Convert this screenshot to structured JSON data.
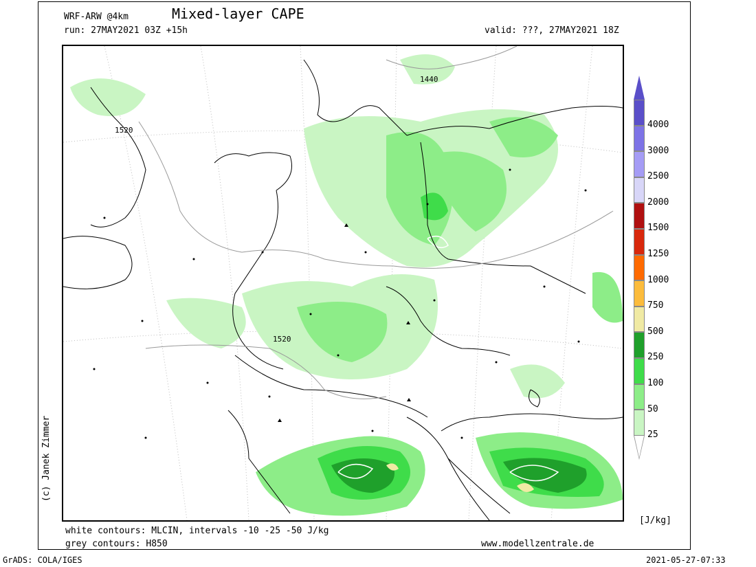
{
  "header": {
    "model": "WRF-ARW @4km",
    "title": "Mixed-layer CAPE",
    "run": "run: 27MAY2021 03Z +15h",
    "valid": "valid: ???, 27MAY2021 18Z"
  },
  "map": {
    "contour_labels": [
      "1520",
      "1440",
      "1520"
    ]
  },
  "footer": {
    "white_contours": "white contours: MLCIN, intervals -10 -25 -50 J/kg",
    "grey_contours": "grey contours: H850",
    "website": "www.modellzentrale.de",
    "grads": "GrADS: COLA/IGES",
    "timestamp": "2021-05-27-07:33"
  },
  "credit": "(c) Janek Zimmer",
  "colorbar": {
    "unit": "[J/kg]",
    "levels": [
      {
        "label": "4000",
        "color": "#5a4fc9"
      },
      {
        "label": "3000",
        "color": "#7d73e6"
      },
      {
        "label": "2500",
        "color": "#a59cf5"
      },
      {
        "label": "2000",
        "color": "#d8d6f8"
      },
      {
        "label": "1500",
        "color": "#b01010"
      },
      {
        "label": "1250",
        "color": "#d8280c"
      },
      {
        "label": "1000",
        "color": "#ff6a00"
      },
      {
        "label": "750",
        "color": "#fcbc3c"
      },
      {
        "label": "500",
        "color": "#f0eaa4"
      },
      {
        "label": "250",
        "color": "#1fa02b"
      },
      {
        "label": "100",
        "color": "#3fdc4a"
      },
      {
        "label": "50",
        "color": "#8ded88"
      },
      {
        "label": "25",
        "color": "#c9f5c3"
      }
    ],
    "lowest_color": "#ffffff"
  }
}
